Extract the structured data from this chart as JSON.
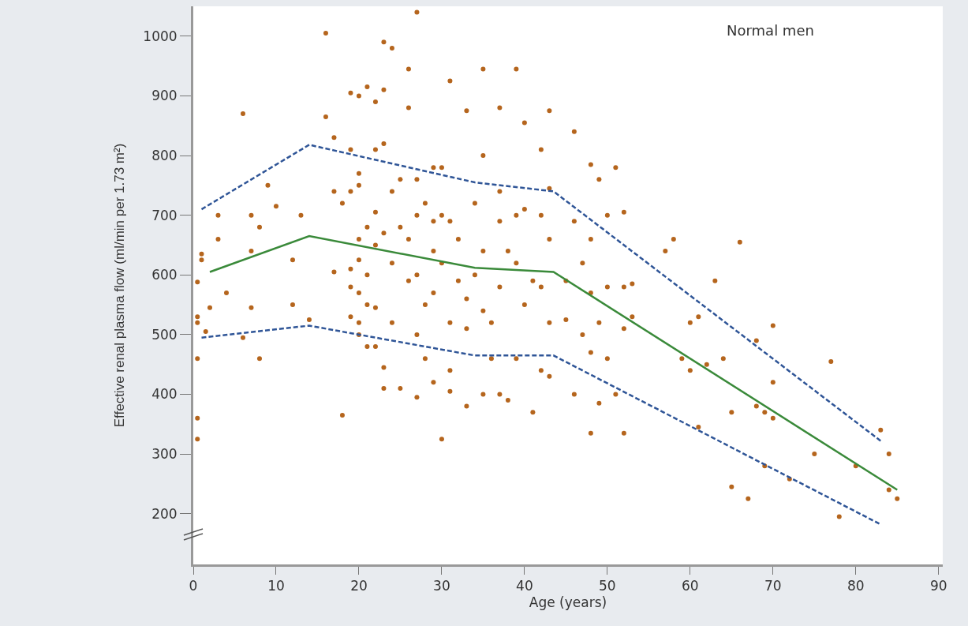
{
  "chart_data": {
    "type": "scatter",
    "xlabel": "Age (years)",
    "ylabel": "Effective renal plasma flow (ml/min per 1.73 m²)",
    "annotations": [
      "Normal men"
    ],
    "xlim": [
      0,
      90.5
    ],
    "xticks": [
      0,
      10,
      20,
      30,
      40,
      50,
      60,
      70,
      80,
      90
    ],
    "ylim": [
      115,
      1050
    ],
    "yticks": [
      200,
      300,
      400,
      500,
      600,
      700,
      800,
      900,
      1000
    ],
    "grid": false,
    "series": [
      {
        "marker": "circle",
        "color": "#b5651d",
        "x": [
          0.5,
          0.5,
          0.5,
          0.5,
          0.5,
          0.5,
          1,
          1,
          1.5,
          2,
          3,
          3,
          4,
          6,
          6,
          7,
          7,
          8,
          8,
          9,
          10,
          7,
          12,
          12,
          13,
          14,
          16,
          16,
          17,
          17,
          17,
          18,
          18,
          19,
          19,
          19,
          19,
          19,
          19,
          20,
          20,
          20,
          20,
          20,
          20,
          20,
          20,
          21,
          21,
          21,
          21,
          21,
          22,
          22,
          22,
          22,
          22,
          22,
          23,
          23,
          23,
          23,
          23,
          23,
          24,
          24,
          24,
          24,
          25,
          25,
          25,
          26,
          26,
          26,
          26,
          27,
          27,
          27,
          27,
          27,
          27,
          28,
          28,
          28,
          29,
          29,
          29,
          29,
          29,
          30,
          30,
          30,
          30,
          31,
          31,
          31,
          31,
          31,
          32,
          32,
          33,
          33,
          33,
          33,
          34,
          34,
          35,
          35,
          35,
          35,
          35,
          36,
          36,
          37,
          37,
          37,
          37,
          37,
          38,
          38,
          39,
          39,
          39,
          39,
          40,
          40,
          40,
          41,
          41,
          42,
          42,
          42,
          42,
          43,
          43,
          43,
          43,
          43,
          45,
          45,
          46,
          46,
          46,
          47,
          47,
          48,
          48,
          48,
          48,
          48,
          49,
          49,
          49,
          50,
          50,
          50,
          51,
          51,
          52,
          52,
          52,
          52,
          53,
          53,
          57,
          58,
          59,
          60,
          60,
          61,
          61,
          62,
          63,
          64,
          65,
          65,
          66,
          67,
          68,
          68,
          69,
          69,
          70,
          70,
          70,
          72,
          75,
          77,
          78,
          80,
          83,
          84,
          84,
          85
        ],
        "values": [
          588,
          530,
          520,
          460,
          360,
          325,
          635,
          625,
          505,
          545,
          700,
          660,
          570,
          495,
          870,
          640,
          545,
          680,
          460,
          750,
          715,
          700,
          625,
          550,
          700,
          525,
          1005,
          865,
          830,
          740,
          605,
          720,
          365,
          905,
          810,
          740,
          610,
          580,
          530,
          900,
          770,
          750,
          660,
          625,
          570,
          520,
          500,
          915,
          680,
          600,
          550,
          480,
          890,
          810,
          705,
          650,
          545,
          480,
          990,
          820,
          910,
          670,
          410,
          445,
          980,
          740,
          620,
          520,
          760,
          680,
          410,
          880,
          945,
          660,
          590,
          1040,
          760,
          700,
          600,
          500,
          395,
          720,
          550,
          460,
          780,
          690,
          640,
          570,
          420,
          780,
          700,
          620,
          325,
          925,
          690,
          520,
          440,
          405,
          660,
          590,
          875,
          560,
          510,
          380,
          720,
          600,
          945,
          800,
          640,
          540,
          400,
          520,
          460,
          880,
          740,
          690,
          580,
          400,
          640,
          390,
          945,
          700,
          620,
          460,
          855,
          710,
          550,
          590,
          370,
          810,
          700,
          580,
          440,
          875,
          745,
          660,
          520,
          430,
          590,
          525,
          840,
          690,
          400,
          620,
          500,
          785,
          660,
          570,
          470,
          335,
          760,
          520,
          385,
          700,
          580,
          460,
          780,
          400,
          705,
          580,
          510,
          335,
          585,
          530,
          640,
          660,
          460,
          520,
          440,
          530,
          345,
          450,
          590,
          460,
          370,
          245,
          655,
          225,
          490,
          380,
          370,
          280,
          515,
          420,
          360,
          258,
          300,
          455,
          195,
          280,
          340,
          300,
          240,
          225
        ]
      },
      {
        "type": "line",
        "marker": "none",
        "color": "#3a8a3a",
        "line_style": "solid",
        "x": [
          2,
          14,
          34,
          43.5,
          85
        ],
        "values": [
          605,
          665,
          612,
          605,
          240
        ]
      },
      {
        "type": "line",
        "marker": "none",
        "color": "#2f5597",
        "line_style": "dashed",
        "x": [
          1,
          14,
          34,
          43.5,
          83
        ],
        "values": [
          710,
          818,
          755,
          740,
          322
        ]
      },
      {
        "type": "line",
        "marker": "none",
        "color": "#2f5597",
        "line_style": "dashed",
        "x": [
          1,
          14,
          34,
          43.5,
          83
        ],
        "values": [
          495,
          515,
          465,
          465,
          182
        ]
      }
    ]
  }
}
